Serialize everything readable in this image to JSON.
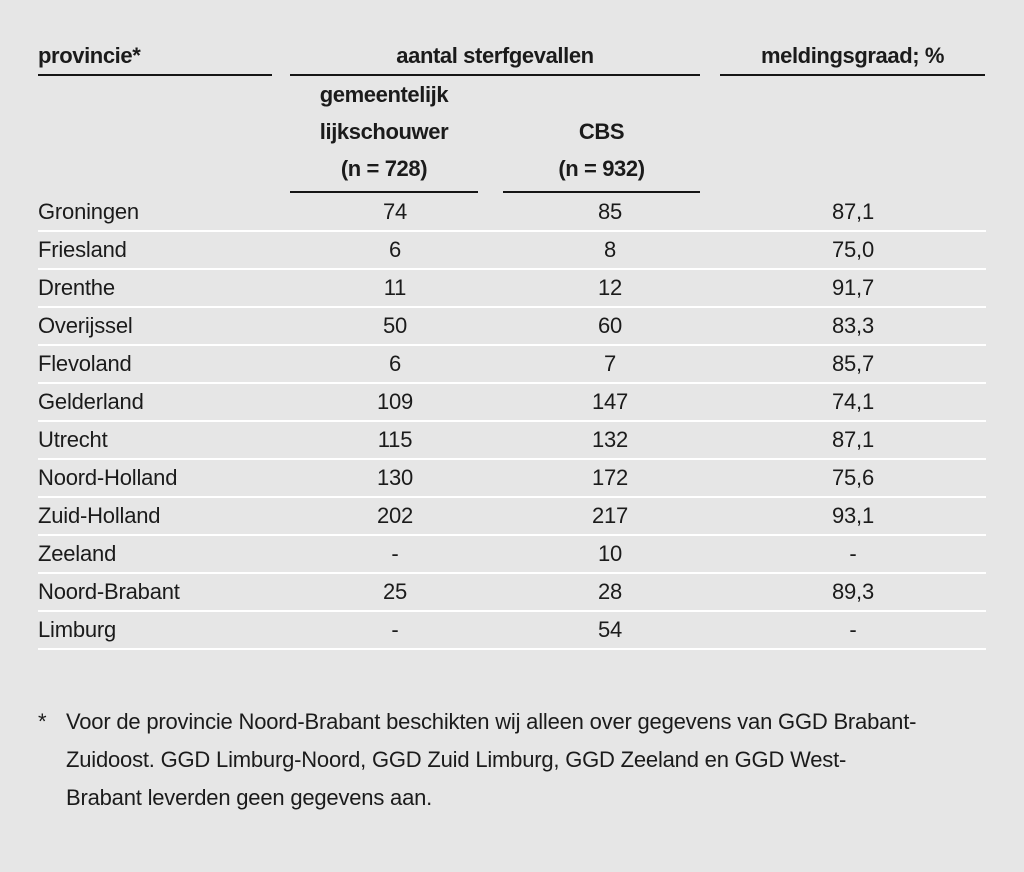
{
  "table": {
    "columns": {
      "province_header": "provincie*",
      "group_header": "aantal sterfgevallen",
      "meldingsgraad_header": "meldingsgraad; %",
      "sub_gemeentelijk": [
        "gemeentelijk",
        "lijkschouwer",
        "(n = 728)"
      ],
      "sub_cbs": [
        "CBS",
        "(n = 932)"
      ]
    },
    "rows": [
      {
        "province": "Groningen",
        "gemeentelijk": "74",
        "cbs": "85",
        "meldingsgraad": "87,1"
      },
      {
        "province": "Friesland",
        "gemeentelijk": "6",
        "cbs": "8",
        "meldingsgraad": "75,0"
      },
      {
        "province": "Drenthe",
        "gemeentelijk": "11",
        "cbs": "12",
        "meldingsgraad": "91,7"
      },
      {
        "province": "Overijssel",
        "gemeentelijk": "50",
        "cbs": "60",
        "meldingsgraad": "83,3"
      },
      {
        "province": "Flevoland",
        "gemeentelijk": "6",
        "cbs": "7",
        "meldingsgraad": "85,7"
      },
      {
        "province": "Gelderland",
        "gemeentelijk": "109",
        "cbs": "147",
        "meldingsgraad": "74,1"
      },
      {
        "province": "Utrecht",
        "gemeentelijk": "115",
        "cbs": "132",
        "meldingsgraad": "87,1"
      },
      {
        "province": "Noord-Holland",
        "gemeentelijk": "130",
        "cbs": "172",
        "meldingsgraad": "75,6"
      },
      {
        "province": "Zuid-Holland",
        "gemeentelijk": "202",
        "cbs": "217",
        "meldingsgraad": "93,1"
      },
      {
        "province": "Zeeland",
        "gemeentelijk": "-",
        "cbs": "10",
        "meldingsgraad": "-"
      },
      {
        "province": "Noord-Brabant",
        "gemeentelijk": "25",
        "cbs": "28",
        "meldingsgraad": "89,3"
      },
      {
        "province": "Limburg",
        "gemeentelijk": "-",
        "cbs": "54",
        "meldingsgraad": "-"
      }
    ]
  },
  "footnote": {
    "marker": "*",
    "text": "Voor de provincie Noord-Brabant beschikten wij alleen over gegevens van GGD Brabant-Zuidoost. GGD Limburg-Noord, GGD Zuid Limburg, GGD Zeeland en GGD West-Brabant leverden geen gegevens aan."
  },
  "colors": {
    "background": "#e6e6e6",
    "text": "#1b1b1b",
    "header_rule": "#161616",
    "row_separator": "#ffffff"
  }
}
